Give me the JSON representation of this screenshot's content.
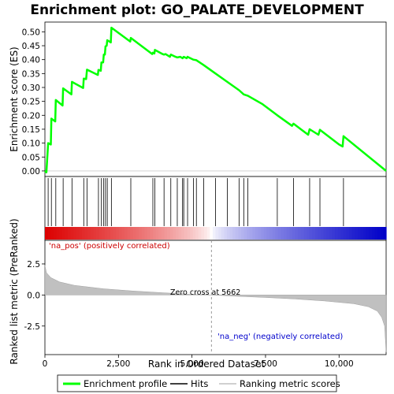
{
  "chart_data": {
    "type": "line",
    "title": "Enrichment plot: GO_PALATE_DEVELOPMENT",
    "xlabel": "Rank in Ordered Dataset",
    "ylabel_top": "Enrichment score (ES)",
    "ylabel_bottom": "Ranked list metric (PreRanked)",
    "x_ticks": [
      0,
      2500,
      5000,
      7500,
      10000
    ],
    "x_tick_labels": [
      "0",
      "2,500",
      "5,000",
      "7,500",
      "10,000"
    ],
    "xlim": [
      0,
      11600
    ],
    "es_yticks": [
      0.0,
      0.05,
      0.1,
      0.15,
      0.2,
      0.25,
      0.3,
      0.35,
      0.4,
      0.45,
      0.5
    ],
    "es_ytick_labels": [
      "0.00",
      "0.05",
      "0.10",
      "0.15",
      "0.20",
      "0.25",
      "0.30",
      "0.35",
      "0.40",
      "0.45",
      "0.50"
    ],
    "es_ylim": [
      -0.02,
      0.535
    ],
    "metric_yticks": [
      2.5,
      0.0,
      -2.5
    ],
    "metric_ytick_labels": [
      "2.5",
      "0.0",
      "-2.5"
    ],
    "metric_ylim": [
      -4.8,
      4.4
    ],
    "enrichment_profile": {
      "name": "Enrichment profile",
      "color": "#00ff00",
      "points": [
        [
          0,
          0.0
        ],
        [
          50,
          -0.005
        ],
        [
          110,
          0.1
        ],
        [
          200,
          0.095
        ],
        [
          220,
          0.188
        ],
        [
          350,
          0.178
        ],
        [
          370,
          0.255
        ],
        [
          600,
          0.235
        ],
        [
          620,
          0.297
        ],
        [
          900,
          0.275
        ],
        [
          920,
          0.32
        ],
        [
          1300,
          0.298
        ],
        [
          1320,
          0.332
        ],
        [
          1400,
          0.33
        ],
        [
          1430,
          0.364
        ],
        [
          1800,
          0.345
        ],
        [
          1820,
          0.363
        ],
        [
          1900,
          0.36
        ],
        [
          1920,
          0.39
        ],
        [
          1980,
          0.39
        ],
        [
          2000,
          0.418
        ],
        [
          2040,
          0.418
        ],
        [
          2060,
          0.448
        ],
        [
          2100,
          0.45
        ],
        [
          2120,
          0.47
        ],
        [
          2240,
          0.462
        ],
        [
          2260,
          0.515
        ],
        [
          2900,
          0.465
        ],
        [
          2920,
          0.478
        ],
        [
          3650,
          0.42
        ],
        [
          3670,
          0.425
        ],
        [
          3720,
          0.422
        ],
        [
          3740,
          0.435
        ],
        [
          4000,
          0.42
        ],
        [
          4050,
          0.418
        ],
        [
          4100,
          0.42
        ],
        [
          4250,
          0.41
        ],
        [
          4280,
          0.418
        ],
        [
          4400,
          0.412
        ],
        [
          4500,
          0.408
        ],
        [
          4600,
          0.41
        ],
        [
          4680,
          0.405
        ],
        [
          4720,
          0.41
        ],
        [
          4820,
          0.405
        ],
        [
          4850,
          0.41
        ],
        [
          5050,
          0.4
        ],
        [
          5150,
          0.398
        ],
        [
          5400,
          0.38
        ],
        [
          5800,
          0.35
        ],
        [
          6200,
          0.32
        ],
        [
          6600,
          0.29
        ],
        [
          6760,
          0.275
        ],
        [
          6900,
          0.27
        ],
        [
          7400,
          0.24
        ],
        [
          7900,
          0.2
        ],
        [
          8400,
          0.162
        ],
        [
          8450,
          0.17
        ],
        [
          8950,
          0.13
        ],
        [
          9000,
          0.15
        ],
        [
          9300,
          0.13
        ],
        [
          9350,
          0.148
        ],
        [
          10000,
          0.095
        ],
        [
          10120,
          0.088
        ],
        [
          10150,
          0.125
        ],
        [
          11600,
          0.0
        ]
      ]
    },
    "hits": {
      "name": "Hits",
      "color": "#000000",
      "positions": [
        110,
        220,
        370,
        620,
        920,
        1320,
        1430,
        1820,
        1920,
        2000,
        2060,
        2120,
        2260,
        2920,
        3670,
        3740,
        4050,
        4280,
        4500,
        4680,
        4720,
        4850,
        5050,
        5150,
        5400,
        5800,
        6200,
        6600,
        6760,
        6900,
        7900,
        8450,
        9000,
        9350,
        10150
      ]
    },
    "ranking_metric": {
      "name": "Ranking metric scores",
      "color": "#c0c0c0",
      "points": [
        [
          0,
          2.4
        ],
        [
          50,
          1.8
        ],
        [
          200,
          1.4
        ],
        [
          500,
          1.05
        ],
        [
          1000,
          0.78
        ],
        [
          2000,
          0.5
        ],
        [
          3000,
          0.32
        ],
        [
          4000,
          0.18
        ],
        [
          5000,
          0.05
        ],
        [
          5662,
          0.0
        ],
        [
          6500,
          -0.1
        ],
        [
          7500,
          -0.2
        ],
        [
          8500,
          -0.32
        ],
        [
          9500,
          -0.48
        ],
        [
          10500,
          -0.7
        ],
        [
          11000,
          -0.95
        ],
        [
          11300,
          -1.3
        ],
        [
          11450,
          -1.8
        ],
        [
          11550,
          -2.5
        ],
        [
          11600,
          -4.6
        ]
      ]
    },
    "annotations": {
      "pos": "'na_pos' (positively correlated)",
      "neg": "'na_neg' (negatively correlated)",
      "zero_cross": "Zero cross at 5662",
      "zero_cross_x": 5662
    },
    "legend": {
      "placement": "bottom",
      "items": [
        {
          "label": "Enrichment profile",
          "color": "#00ff00"
        },
        {
          "label": "Hits",
          "color": "#000000"
        },
        {
          "label": "Ranking metric scores",
          "color": "#c0c0c0"
        }
      ]
    },
    "heatmap_bar": {
      "red_end_rank": 5662,
      "blue_start_rank": 5662
    }
  }
}
